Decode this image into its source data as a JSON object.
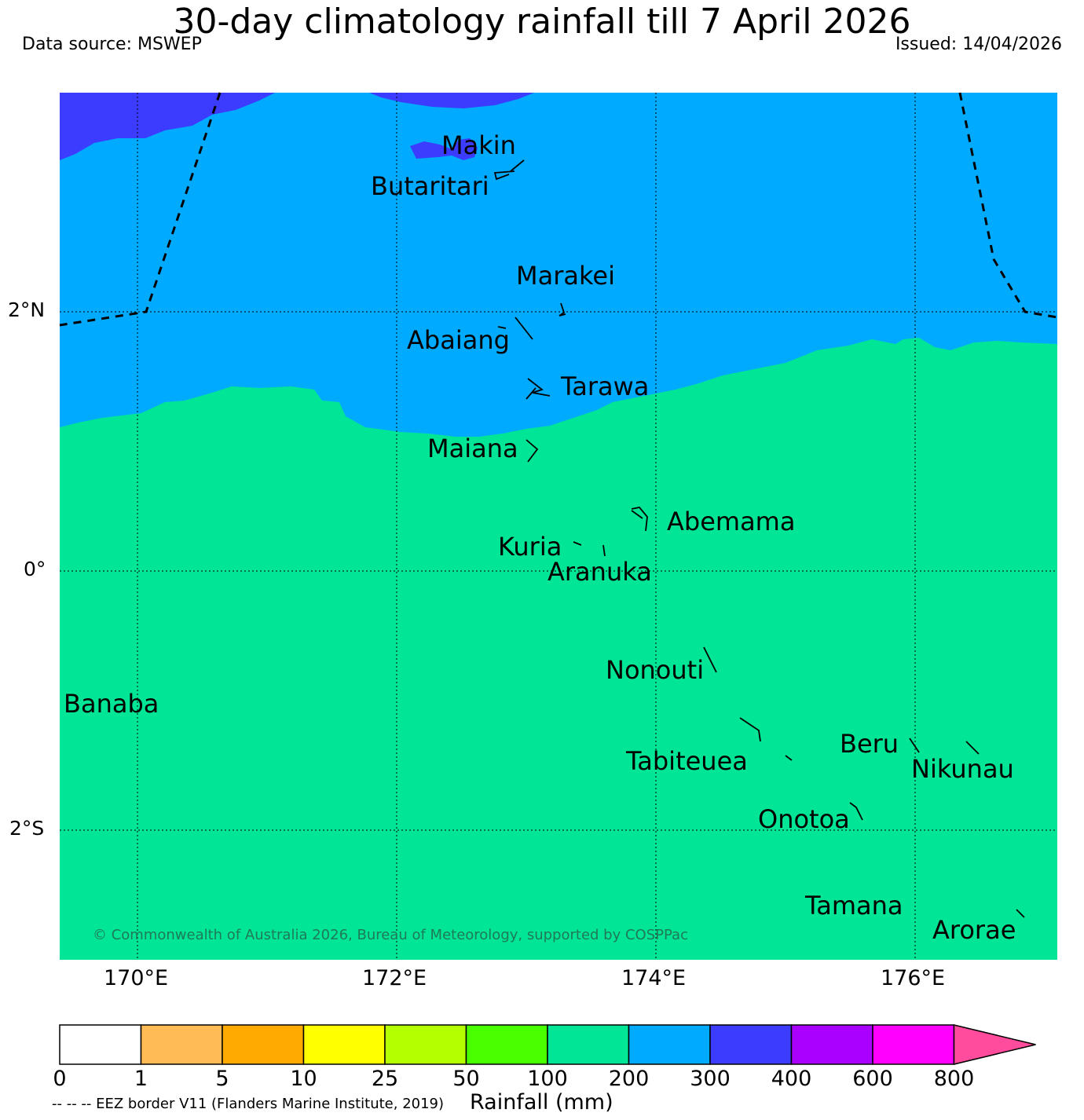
{
  "header": {
    "title": "30-day climatology rainfall till 7 April 2026",
    "source": "Data source: MSWEP",
    "issued": "Issued: 14/04/2026"
  },
  "map": {
    "lat_labels": [
      "2°N",
      "0°",
      "2°S"
    ],
    "lon_labels": [
      "170°E",
      "172°E",
      "174°E",
      "176°E"
    ],
    "islands": [
      {
        "name": "Makin"
      },
      {
        "name": "Butaritari"
      },
      {
        "name": "Marakei"
      },
      {
        "name": "Abaiang"
      },
      {
        "name": "Tarawa"
      },
      {
        "name": "Maiana"
      },
      {
        "name": "Abemama"
      },
      {
        "name": "Kuria"
      },
      {
        "name": "Aranuka"
      },
      {
        "name": "Nonouti"
      },
      {
        "name": "Banaba"
      },
      {
        "name": "Beru"
      },
      {
        "name": "Tabiteuea"
      },
      {
        "name": "Nikunau"
      },
      {
        "name": "Onotoa"
      },
      {
        "name": "Tamana"
      },
      {
        "name": "Arorae"
      }
    ],
    "copyright": "© Commonwealth of Australia 2026, Bureau of Meteorology, supported by COSPPac",
    "rainfall_zones": [
      "200-300",
      "300-400",
      "100-200"
    ]
  },
  "colorbar": {
    "title": "Rainfall (mm)",
    "ticks": [
      "0",
      "1",
      "5",
      "10",
      "25",
      "50",
      "100",
      "200",
      "300",
      "400",
      "600",
      "800"
    ],
    "colors": [
      "#ffffff",
      "#ffbb55",
      "#ffaa00",
      "#ffff00",
      "#b4ff00",
      "#49ff00",
      "#00e696",
      "#00aaff",
      "#3c3cff",
      "#aa00ff",
      "#ff00ff",
      "#ff4c9c"
    ]
  },
  "legend": {
    "eez_note": "-- -- -- EEZ border V11 (Flanders Marine Institute, 2019)"
  }
}
